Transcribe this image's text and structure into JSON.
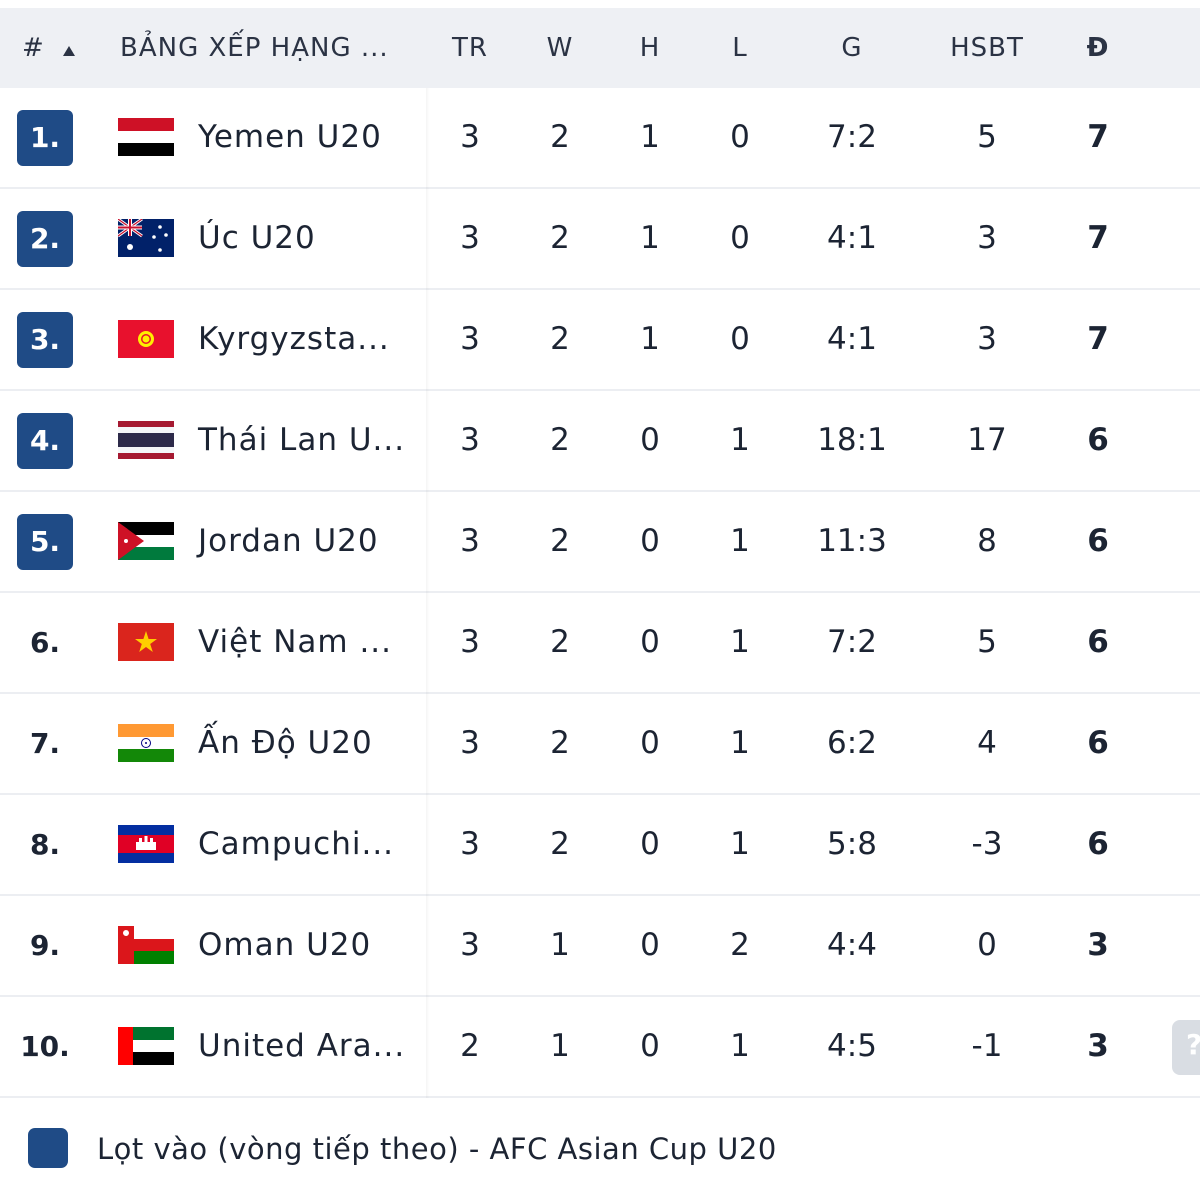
{
  "header": {
    "rank": "#",
    "sort_icon": "sort-asc-icon",
    "team": "BẢNG XẾP HẠNG ...",
    "played": "TR",
    "won": "W",
    "drawn": "H",
    "lost": "L",
    "goals": "G",
    "goal_diff": "HSBT",
    "points": "Đ"
  },
  "rows": [
    {
      "rank": "1.",
      "team": "Yemen U20",
      "flag": "yemen",
      "played": "3",
      "won": "2",
      "drawn": "1",
      "lost": "0",
      "goals": "7:2",
      "gd": "5",
      "pts": "7",
      "qualified": true
    },
    {
      "rank": "2.",
      "team": "Úc U20",
      "flag": "australia",
      "played": "3",
      "won": "2",
      "drawn": "1",
      "lost": "0",
      "goals": "4:1",
      "gd": "3",
      "pts": "7",
      "qualified": true
    },
    {
      "rank": "3.",
      "team": "Kyrgyzsta...",
      "flag": "kyrgyzstan",
      "played": "3",
      "won": "2",
      "drawn": "1",
      "lost": "0",
      "goals": "4:1",
      "gd": "3",
      "pts": "7",
      "qualified": true
    },
    {
      "rank": "4.",
      "team": "Thái Lan U...",
      "flag": "thailand",
      "played": "3",
      "won": "2",
      "drawn": "0",
      "lost": "1",
      "goals": "18:1",
      "gd": "17",
      "pts": "6",
      "qualified": true
    },
    {
      "rank": "5.",
      "team": "Jordan U20",
      "flag": "jordan",
      "played": "3",
      "won": "2",
      "drawn": "0",
      "lost": "1",
      "goals": "11:3",
      "gd": "8",
      "pts": "6",
      "qualified": true
    },
    {
      "rank": "6.",
      "team": "Việt Nam ...",
      "flag": "vietnam",
      "played": "3",
      "won": "2",
      "drawn": "0",
      "lost": "1",
      "goals": "7:2",
      "gd": "5",
      "pts": "6",
      "qualified": false
    },
    {
      "rank": "7.",
      "team": "Ấn Độ U20",
      "flag": "india",
      "played": "3",
      "won": "2",
      "drawn": "0",
      "lost": "1",
      "goals": "6:2",
      "gd": "4",
      "pts": "6",
      "qualified": false
    },
    {
      "rank": "8.",
      "team": "Campuchi...",
      "flag": "cambodia",
      "played": "3",
      "won": "2",
      "drawn": "0",
      "lost": "1",
      "goals": "5:8",
      "gd": "-3",
      "pts": "6",
      "qualified": false
    },
    {
      "rank": "9.",
      "team": "Oman U20",
      "flag": "oman",
      "played": "3",
      "won": "1",
      "drawn": "0",
      "lost": "2",
      "goals": "4:4",
      "gd": "0",
      "pts": "3",
      "qualified": false
    },
    {
      "rank": "10.",
      "team": "United Ara...",
      "flag": "uae",
      "played": "2",
      "won": "1",
      "drawn": "0",
      "lost": "1",
      "goals": "4:5",
      "gd": "-1",
      "pts": "3",
      "qualified": false
    }
  ],
  "legend": {
    "color": "#1f4b86",
    "label": "Lọt vào (vòng tiếp theo) - AFC Asian Cup U20"
  },
  "scroll_button": {
    "icon": "help-icon",
    "glyph": "?"
  },
  "colors": {
    "qualified": "#1f4b86",
    "header_bg": "#eef0f4",
    "text": "#1c2433"
  }
}
